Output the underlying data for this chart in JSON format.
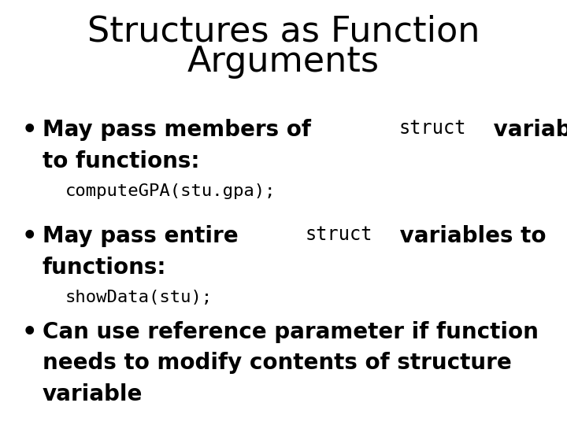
{
  "title_line1": "Structures as Function",
  "title_line2": "Arguments",
  "background_color": "#ffffff",
  "text_color": "#000000",
  "title_fontsize": 32,
  "body_fontsize": 20,
  "code_fontsize": 16,
  "figsize": [
    7.2,
    5.4
  ],
  "dpi": 100,
  "bullet1_parts_line1": [
    {
      "text": "May pass members of ",
      "style": "normal"
    },
    {
      "text": "struct",
      "style": "mono"
    },
    {
      "text": " variables",
      "style": "normal"
    }
  ],
  "bullet1_line2": "to functions:",
  "bullet1_code": "computeGPA(stu.gpa);",
  "bullet2_parts_line1": [
    {
      "text": "May pass entire ",
      "style": "normal"
    },
    {
      "text": "struct",
      "style": "mono"
    },
    {
      "text": " variables to",
      "style": "normal"
    }
  ],
  "bullet2_line2": "functions:",
  "bullet2_code": "showData(stu);",
  "bullet3_line1": "Can use reference parameter if function",
  "bullet3_line2": "needs to modify contents of structure",
  "bullet3_line3": "variable"
}
